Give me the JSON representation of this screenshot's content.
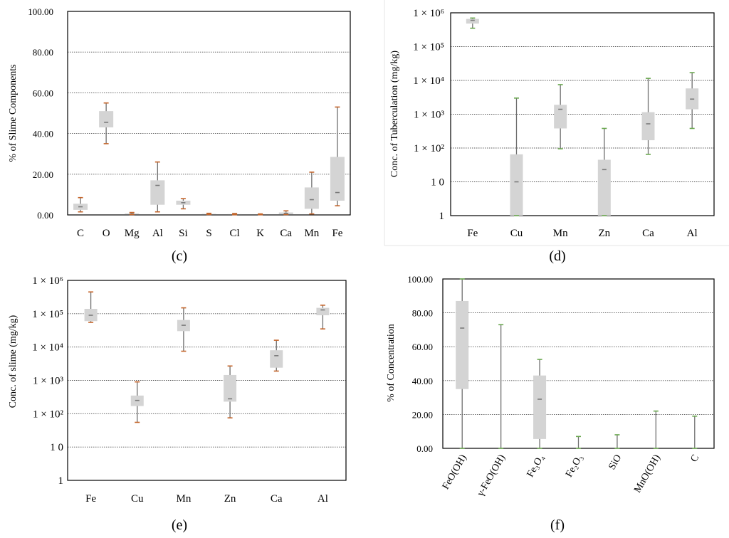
{
  "chart_data": [
    {
      "type": "box",
      "panel_label": "(c)",
      "ylabel": "% of Slime Components",
      "scale": "linear",
      "ylim": [
        0,
        100
      ],
      "yticks": [
        "0.00",
        "20.00",
        "40.00",
        "60.00",
        "80.00",
        "100.00"
      ],
      "categories": [
        "C",
        "O",
        "Mg",
        "Al",
        "Si",
        "S",
        "Cl",
        "K",
        "Ca",
        "Mn",
        "Fe"
      ],
      "boxes": [
        {
          "min": 1.5,
          "q1": 2.5,
          "median": 4,
          "q3": 5.5,
          "max": 8.5
        },
        {
          "min": 35,
          "q1": 43,
          "median": 45.5,
          "q3": 51,
          "max": 55
        },
        {
          "min": 0.2,
          "q1": 0.3,
          "median": 0.5,
          "q3": 0.7,
          "max": 1.2
        },
        {
          "min": 1.5,
          "q1": 5,
          "median": 14.5,
          "q3": 17,
          "max": 26
        },
        {
          "min": 3,
          "q1": 5,
          "median": 6,
          "q3": 7,
          "max": 8
        },
        {
          "min": 0.2,
          "q1": 0.3,
          "median": 0.4,
          "q3": 0.5,
          "max": 0.8
        },
        {
          "min": 0.1,
          "q1": 0.2,
          "median": 0.3,
          "q3": 0.4,
          "max": 0.7
        },
        {
          "min": 0.1,
          "q1": 0.15,
          "median": 0.2,
          "q3": 0.3,
          "max": 0.5
        },
        {
          "min": 0.2,
          "q1": 0.3,
          "median": 0.8,
          "q3": 1.2,
          "max": 2
        },
        {
          "min": 0.5,
          "q1": 3,
          "median": 7.5,
          "q3": 13.5,
          "max": 21
        },
        {
          "min": 4.5,
          "q1": 7,
          "median": 11,
          "q3": 28.5,
          "max": 53
        }
      ]
    },
    {
      "type": "box",
      "panel_label": "(d)",
      "ylabel": "Conc. of Tuberculation (mg/kg)",
      "scale": "log",
      "ylim": [
        1,
        1000000
      ],
      "yticks": [
        "1",
        "1 0",
        "1 × 10²",
        "1 × 10³",
        "1 × 10⁴",
        "1 × 10⁵",
        "1 × 10⁶"
      ],
      "categories": [
        "Fe",
        "Cu",
        "Mn",
        "Zn",
        "Ca",
        "Al"
      ],
      "boxes": [
        {
          "min": 350000,
          "q1": 480000,
          "median": 600000,
          "q3": 660000,
          "max": 700000
        },
        {
          "min": 1,
          "q1": 1,
          "median": 10,
          "q3": 65,
          "max": 3000
        },
        {
          "min": 95,
          "q1": 380,
          "median": 1400,
          "q3": 1900,
          "max": 7500
        },
        {
          "min": 1,
          "q1": 1,
          "median": 23,
          "q3": 45,
          "max": 380
        },
        {
          "min": 65,
          "q1": 170,
          "median": 520,
          "q3": 1150,
          "max": 11500
        },
        {
          "min": 380,
          "q1": 1400,
          "median": 2800,
          "q3": 5800,
          "max": 17000
        }
      ]
    },
    {
      "type": "box",
      "panel_label": "(e)",
      "ylabel": "Conc. of slime (mg/kg)",
      "scale": "log",
      "ylim": [
        1,
        1000000
      ],
      "yticks": [
        "1",
        "1 0",
        "1 × 10²",
        "1 × 10³",
        "1 × 10⁴",
        "1 × 10⁵",
        "1 × 10⁶"
      ],
      "categories": [
        "Fe",
        "Cu",
        "Mn",
        "Zn",
        "Ca",
        "Al"
      ],
      "boxes": [
        {
          "min": 55000,
          "q1": 60000,
          "median": 90000,
          "q3": 140000,
          "max": 450000
        },
        {
          "min": 55,
          "q1": 170,
          "median": 250,
          "q3": 350,
          "max": 900
        },
        {
          "min": 7500,
          "q1": 30000,
          "median": 45000,
          "q3": 65000,
          "max": 150000
        },
        {
          "min": 75,
          "q1": 230,
          "median": 280,
          "q3": 1450,
          "max": 2700
        },
        {
          "min": 1900,
          "q1": 2400,
          "median": 5500,
          "q3": 8000,
          "max": 16000
        },
        {
          "min": 35000,
          "q1": 90000,
          "median": 130000,
          "q3": 150000,
          "max": 180000
        }
      ]
    },
    {
      "type": "box",
      "panel_label": "(f)",
      "ylabel": "% of Concentration",
      "scale": "linear",
      "ylim": [
        0,
        100
      ],
      "yticks": [
        "0.00",
        "20.00",
        "40.00",
        "60.00",
        "80.00",
        "100.00"
      ],
      "categories": [
        "FeO(OH)",
        "γ-FeO(OH)",
        "Fe₃O₄",
        "Fe₂O₃",
        "SiO",
        "MnO(OH)",
        "C"
      ],
      "boxes": [
        {
          "min": 0,
          "q1": 35,
          "median": 71,
          "q3": 87,
          "max": 100
        },
        {
          "min": 0,
          "q1": 0,
          "median": 0,
          "q3": 0,
          "max": 73
        },
        {
          "min": 0,
          "q1": 5.5,
          "median": 29,
          "q3": 43,
          "max": 52.5
        },
        {
          "min": 0,
          "q1": 0,
          "median": 0,
          "q3": 0,
          "max": 7
        },
        {
          "min": 0,
          "q1": 0,
          "median": 0,
          "q3": 0,
          "max": 8
        },
        {
          "min": 0,
          "q1": 0,
          "median": 0,
          "q3": 0,
          "max": 22
        },
        {
          "min": 0,
          "q1": 0,
          "median": 0,
          "q3": 0,
          "max": 19
        }
      ]
    }
  ],
  "colors": {
    "box_fill": "#d4d4d4",
    "whisker_line": "#6e6e6e",
    "cap_orange": "#c5652a",
    "cap_green": "#6aa84f",
    "median_mark": "#7a7a7a",
    "grid": "#555555"
  }
}
